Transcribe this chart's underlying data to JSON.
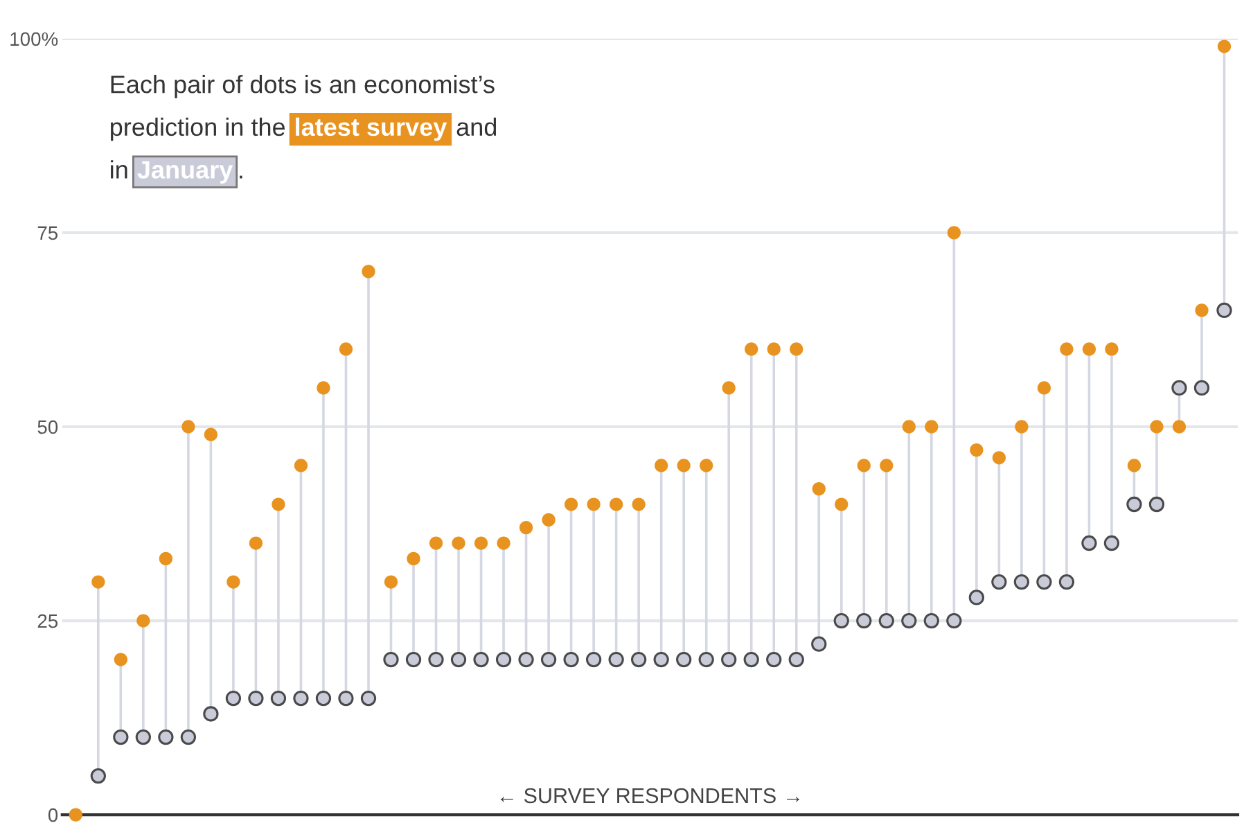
{
  "chart_data": {
    "type": "scatter",
    "categories": [
      null,
      null,
      null,
      null,
      null,
      null,
      null,
      null,
      null,
      null,
      null,
      null,
      null,
      null,
      null,
      null,
      null,
      null,
      null,
      null,
      null,
      null,
      null,
      null,
      null,
      null,
      null,
      null,
      null,
      null,
      null,
      null,
      null,
      null,
      null,
      null,
      null,
      null,
      null,
      null,
      null,
      null,
      null,
      null,
      null,
      null,
      null,
      null,
      null,
      null,
      null,
      null
    ],
    "series": [
      {
        "name": "latest survey",
        "color": "#e8931f",
        "values": [
          0,
          30,
          20,
          25,
          33,
          50,
          49,
          30,
          35,
          40,
          45,
          55,
          60,
          70,
          30,
          33,
          35,
          35,
          35,
          35,
          37,
          38,
          40,
          40,
          40,
          40,
          45,
          45,
          45,
          55,
          60,
          60,
          60,
          42,
          40,
          45,
          45,
          50,
          50,
          75,
          47,
          46,
          50,
          55,
          60,
          60,
          60,
          45,
          50,
          50,
          65,
          99
        ]
      },
      {
        "name": "January",
        "color": "#c9ccd8",
        "values": [
          null,
          5,
          10,
          10,
          10,
          10,
          13,
          15,
          15,
          15,
          15,
          15,
          15,
          15,
          20,
          20,
          20,
          20,
          20,
          20,
          20,
          20,
          20,
          20,
          20,
          20,
          20,
          20,
          20,
          20,
          20,
          20,
          20,
          22,
          25,
          25,
          25,
          25,
          25,
          25,
          28,
          30,
          30,
          30,
          30,
          35,
          35,
          40,
          40,
          55,
          55,
          65
        ]
      }
    ],
    "xlabel": "← SURVEY RESPONDENTS →",
    "annotations": [
      "Each pair of dots is an economist’s",
      "prediction in the",
      "and",
      "in",
      "."
    ],
    "ylim": [
      0,
      100
    ],
    "yticks": [
      0,
      25,
      50,
      75,
      {
        "value": 100,
        "label": "100%"
      }
    ],
    "grid": "y",
    "marker": "circle",
    "legend": "top left"
  }
}
